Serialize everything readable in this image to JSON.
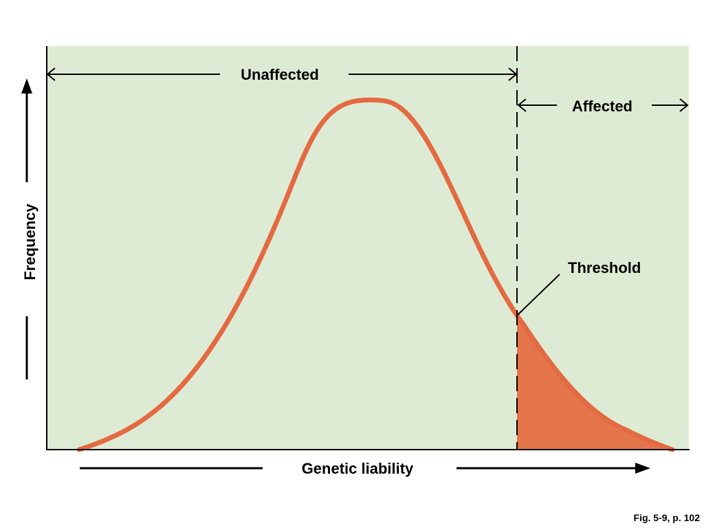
{
  "labels": {
    "unaffected": "Unaffected",
    "affected": "Affected",
    "threshold": "Threshold",
    "frequency": "Frequency",
    "genetic_liability": "Genetic liability",
    "figure_ref": "Fig. 5-9, p. 102"
  },
  "colors": {
    "plot_background": "#deebd4",
    "curve": "#e46a42",
    "affected_fill": "#e4744a",
    "axis": "#000000"
  }
}
